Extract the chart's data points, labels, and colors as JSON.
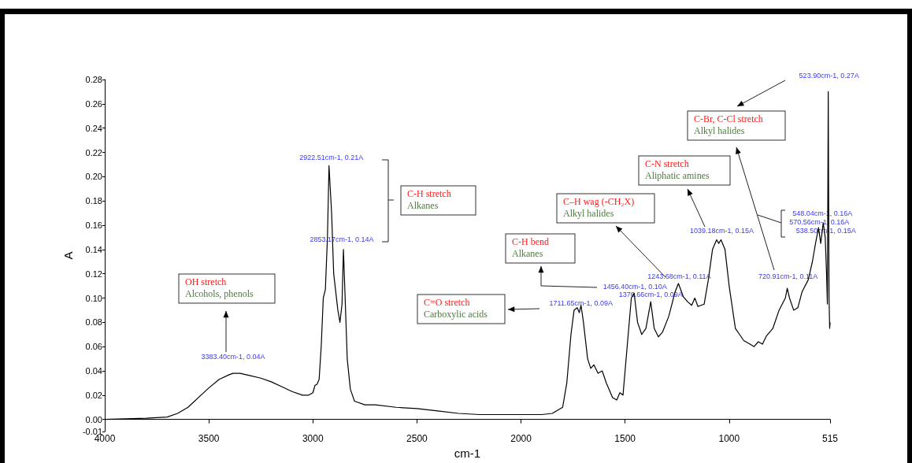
{
  "chart_data": {
    "type": "line",
    "xlabel": "cm-1",
    "ylabel": "A",
    "xlim": [
      4000,
      515
    ],
    "xticks": [
      4000,
      3500,
      3000,
      2500,
      2000,
      1500,
      1000,
      515
    ],
    "ylim": [
      -0.01,
      0.28
    ],
    "yticks": [
      {
        "value": -0.01,
        "label": "-0.01"
      },
      {
        "value": 0,
        "label": "0.00"
      },
      {
        "value": 0.02,
        "label": "0.02"
      },
      {
        "value": 0.04,
        "label": "0.04"
      },
      {
        "value": 0.06,
        "label": "0.06"
      },
      {
        "value": 0.08,
        "label": "0.08"
      },
      {
        "value": 0.1,
        "label": "0.10"
      },
      {
        "value": 0.12,
        "label": "0.12"
      },
      {
        "value": 0.14,
        "label": "0.14"
      },
      {
        "value": 0.16,
        "label": "0.16"
      },
      {
        "value": 0.18,
        "label": "0.18"
      },
      {
        "value": 0.2,
        "label": "0.20"
      },
      {
        "value": 0.22,
        "label": "0.22"
      },
      {
        "value": 0.24,
        "label": "0.24"
      },
      {
        "value": 0.26,
        "label": "0.26"
      },
      {
        "value": 0.28,
        "label": "0.28"
      }
    ],
    "grid": false,
    "marker": "none",
    "line_style": "solid",
    "series": [
      {
        "color": "#000000",
        "x": [
          4000,
          3800,
          3700,
          3650,
          3600,
          3550,
          3500,
          3450,
          3400,
          3383.4,
          3350,
          3300,
          3250,
          3200,
          3150,
          3100,
          3050,
          3020,
          3000,
          2990,
          2980,
          2970,
          2960,
          2950,
          2940,
          2930,
          2922.51,
          2910,
          2900,
          2880,
          2870,
          2860,
          2853.17,
          2845,
          2835,
          2820,
          2800,
          2750,
          2700,
          2600,
          2500,
          2400,
          2300,
          2200,
          2100,
          2000,
          1900,
          1850,
          1800,
          1780,
          1760,
          1745,
          1730,
          1720,
          1711.65,
          1700,
          1680,
          1665,
          1650,
          1630,
          1610,
          1590,
          1560,
          1540,
          1525,
          1510,
          1490,
          1470,
          1456.4,
          1440,
          1420,
          1400,
          1376.66,
          1360,
          1340,
          1320,
          1290,
          1260,
          1243.68,
          1220,
          1200,
          1180,
          1165,
          1150,
          1120,
          1100,
          1080,
          1060,
          1050,
          1039.18,
          1020,
          1000,
          970,
          950,
          930,
          900,
          880,
          860,
          840,
          820,
          790,
          760,
          730,
          720.91,
          710,
          690,
          670,
          650,
          620,
          600,
          585,
          570.56,
          560,
          548.04,
          538.5,
          532,
          528,
          523.9,
          520,
          517,
          515
        ],
        "values": [
          0.0,
          0.001,
          0.002,
          0.005,
          0.01,
          0.018,
          0.026,
          0.033,
          0.037,
          0.038,
          0.038,
          0.036,
          0.034,
          0.031,
          0.027,
          0.023,
          0.02,
          0.02,
          0.022,
          0.028,
          0.029,
          0.033,
          0.06,
          0.1,
          0.107,
          0.15,
          0.209,
          0.17,
          0.12,
          0.09,
          0.08,
          0.095,
          0.14,
          0.1,
          0.05,
          0.025,
          0.015,
          0.012,
          0.012,
          0.01,
          0.009,
          0.007,
          0.005,
          0.004,
          0.004,
          0.004,
          0.004,
          0.005,
          0.01,
          0.03,
          0.07,
          0.09,
          0.092,
          0.088,
          0.094,
          0.08,
          0.05,
          0.042,
          0.045,
          0.038,
          0.04,
          0.03,
          0.018,
          0.016,
          0.022,
          0.02,
          0.06,
          0.1,
          0.104,
          0.08,
          0.07,
          0.075,
          0.097,
          0.075,
          0.068,
          0.072,
          0.085,
          0.105,
          0.112,
          0.101,
          0.097,
          0.094,
          0.1,
          0.093,
          0.095,
          0.115,
          0.14,
          0.148,
          0.145,
          0.148,
          0.14,
          0.11,
          0.075,
          0.07,
          0.065,
          0.062,
          0.06,
          0.064,
          0.062,
          0.069,
          0.075,
          0.09,
          0.1,
          0.108,
          0.1,
          0.09,
          0.092,
          0.105,
          0.115,
          0.13,
          0.145,
          0.158,
          0.145,
          0.162,
          0.15,
          0.12,
          0.095,
          0.27,
          0.1,
          0.075,
          0.08
        ]
      }
    ],
    "annotations": [
      {
        "text": "3383.40cm-1, 0.04A",
        "x": 3383.4,
        "y": 0.04
      },
      {
        "text": "2922.51cm-1, 0.21A",
        "x": 2922.51,
        "y": 0.21
      },
      {
        "text": "2853.17cm-1, 0.14A",
        "x": 2853.17,
        "y": 0.14
      },
      {
        "text": "1711.65cm-1, 0.09A",
        "x": 1711.65,
        "y": 0.09
      },
      {
        "text": "1456.40cm-1, 0.10A",
        "x": 1456.4,
        "y": 0.1
      },
      {
        "text": "1376.66cm-1, 0.09A",
        "x": 1376.66,
        "y": 0.09
      },
      {
        "text": "1243.68cm-1, 0.11A",
        "x": 1243.68,
        "y": 0.11
      },
      {
        "text": "1039.18cm-1, 0.15A",
        "x": 1039.18,
        "y": 0.15
      },
      {
        "text": "720.91cm-1, 0.11A",
        "x": 720.91,
        "y": 0.11
      },
      {
        "text": "548.04cm-1, 0.16A",
        "x": 548.04,
        "y": 0.16
      },
      {
        "text": "570.56cm-1, 0.16A",
        "x": 570.56,
        "y": 0.16
      },
      {
        "text": "538.50cm-1, 0.15A",
        "x": 538.5,
        "y": 0.15
      },
      {
        "text": "523.90cm-1, 0.27A",
        "x": 523.9,
        "y": 0.27
      },
      "OH stretch\nAlcohols, phenols",
      "C-H stretch\nAlkanes",
      "C=O stretch\nCarboxylic acids",
      "C-H bend\nAlkanes",
      "C–H wag (-CH₂X)\nAlkyl halides",
      "C-N stretch\nAliphatic amines",
      "C-Br, C-Cl stretch\nAlkyl halides"
    ]
  }
}
